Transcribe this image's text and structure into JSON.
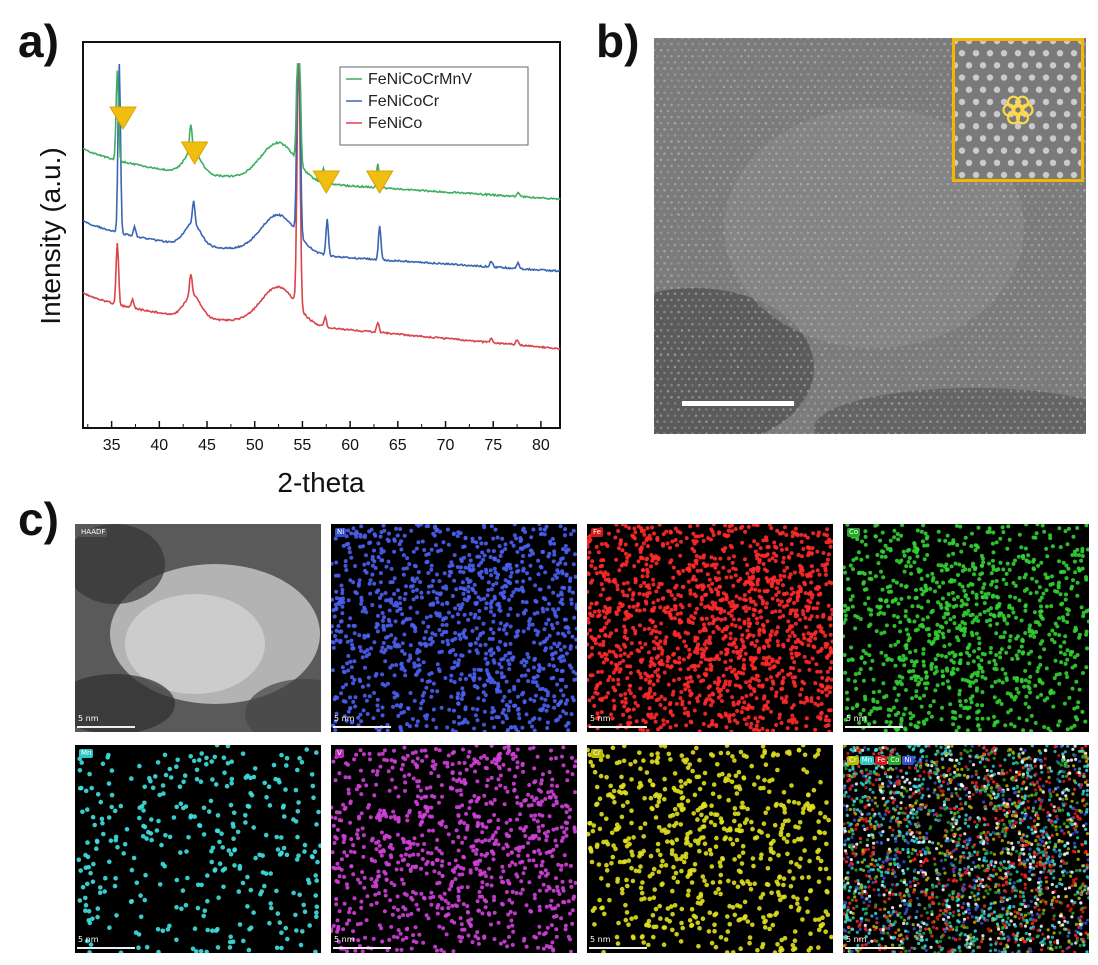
{
  "panels": {
    "a": "a)",
    "b": "b)",
    "c": "c)"
  },
  "chart_data": {
    "type": "line",
    "xlabel": "2-theta",
    "ylabel": "Intensity (a.u.)",
    "xlim": [
      32,
      82
    ],
    "xticks": [
      35,
      40,
      45,
      50,
      55,
      60,
      65,
      70,
      75,
      80
    ],
    "yticks": [],
    "grid": false,
    "legend_position": "top-right",
    "series": [
      {
        "name": "FeNiCo",
        "color": "#d9434a",
        "peaks": [
          [
            35.6,
            62
          ],
          [
            37.2,
            8
          ],
          [
            43.3,
            40
          ],
          [
            54.6,
            260
          ],
          [
            57.4,
            10
          ],
          [
            62.9,
            10
          ],
          [
            74.8,
            4
          ],
          [
            77.5,
            5
          ]
        ]
      },
      {
        "name": "FeNiCoCr",
        "color": "#3a64b5",
        "peaks": [
          [
            35.8,
            170
          ],
          [
            37.4,
            10
          ],
          [
            43.6,
            40
          ],
          [
            54.6,
            260
          ],
          [
            57.6,
            36
          ],
          [
            63.1,
            34
          ],
          [
            74.8,
            6
          ],
          [
            77.6,
            6
          ]
        ]
      },
      {
        "name": "FeNiCoCrMnV",
        "color": "#3fae5f",
        "peaks": [
          [
            35.6,
            90
          ],
          [
            43.3,
            50
          ],
          [
            54.6,
            180
          ],
          [
            57.2,
            14
          ],
          [
            62.9,
            24
          ],
          [
            77.6,
            4
          ]
        ]
      }
    ],
    "markers": {
      "color": "#f0be10",
      "x": [
        36.2,
        43.7,
        57.5,
        63.1
      ]
    }
  },
  "panel_b": {
    "inset_border": "#f2b705",
    "motif_color": "#ffd84a"
  },
  "panel_c": {
    "maps": [
      {
        "id": "haadf",
        "tag": "HAADF",
        "tag_color": "#555555",
        "scale": "5 nm"
      },
      {
        "id": "ni",
        "tag": "Ni",
        "tag_color": "#3a4fcf",
        "dot_color": "#4a5ff0",
        "scale": "5 nm"
      },
      {
        "id": "fe",
        "tag": "Fe",
        "tag_color": "#d31a1a",
        "dot_color": "#ff2a2a",
        "scale": "5 nm"
      },
      {
        "id": "co",
        "tag": "Co",
        "tag_color": "#2aa52a",
        "dot_color": "#33d033",
        "scale": "5 nm"
      },
      {
        "id": "mn",
        "tag": "Mn",
        "tag_color": "#2cc6c6",
        "dot_color": "#40e0e0",
        "scale": "5 nm"
      },
      {
        "id": "v",
        "tag": "V",
        "tag_color": "#b62bb6",
        "dot_color": "#d040d8",
        "scale": "5 nm"
      },
      {
        "id": "cr",
        "tag": "Cr",
        "tag_color": "#b9b900",
        "dot_color": "#e0e020",
        "scale": "5 nm"
      },
      {
        "id": "overlay",
        "tag": "",
        "scale": "5 nm"
      }
    ],
    "overlay_legend": [
      {
        "label": "Cr",
        "color": "#b9b900"
      },
      {
        "label": "Mn",
        "color": "#2cc6c6"
      },
      {
        "label": "Fe",
        "color": "#d31a1a"
      },
      {
        "label": "Co",
        "color": "#2aa52a"
      },
      {
        "label": "Ni",
        "color": "#3a4fcf"
      }
    ]
  }
}
